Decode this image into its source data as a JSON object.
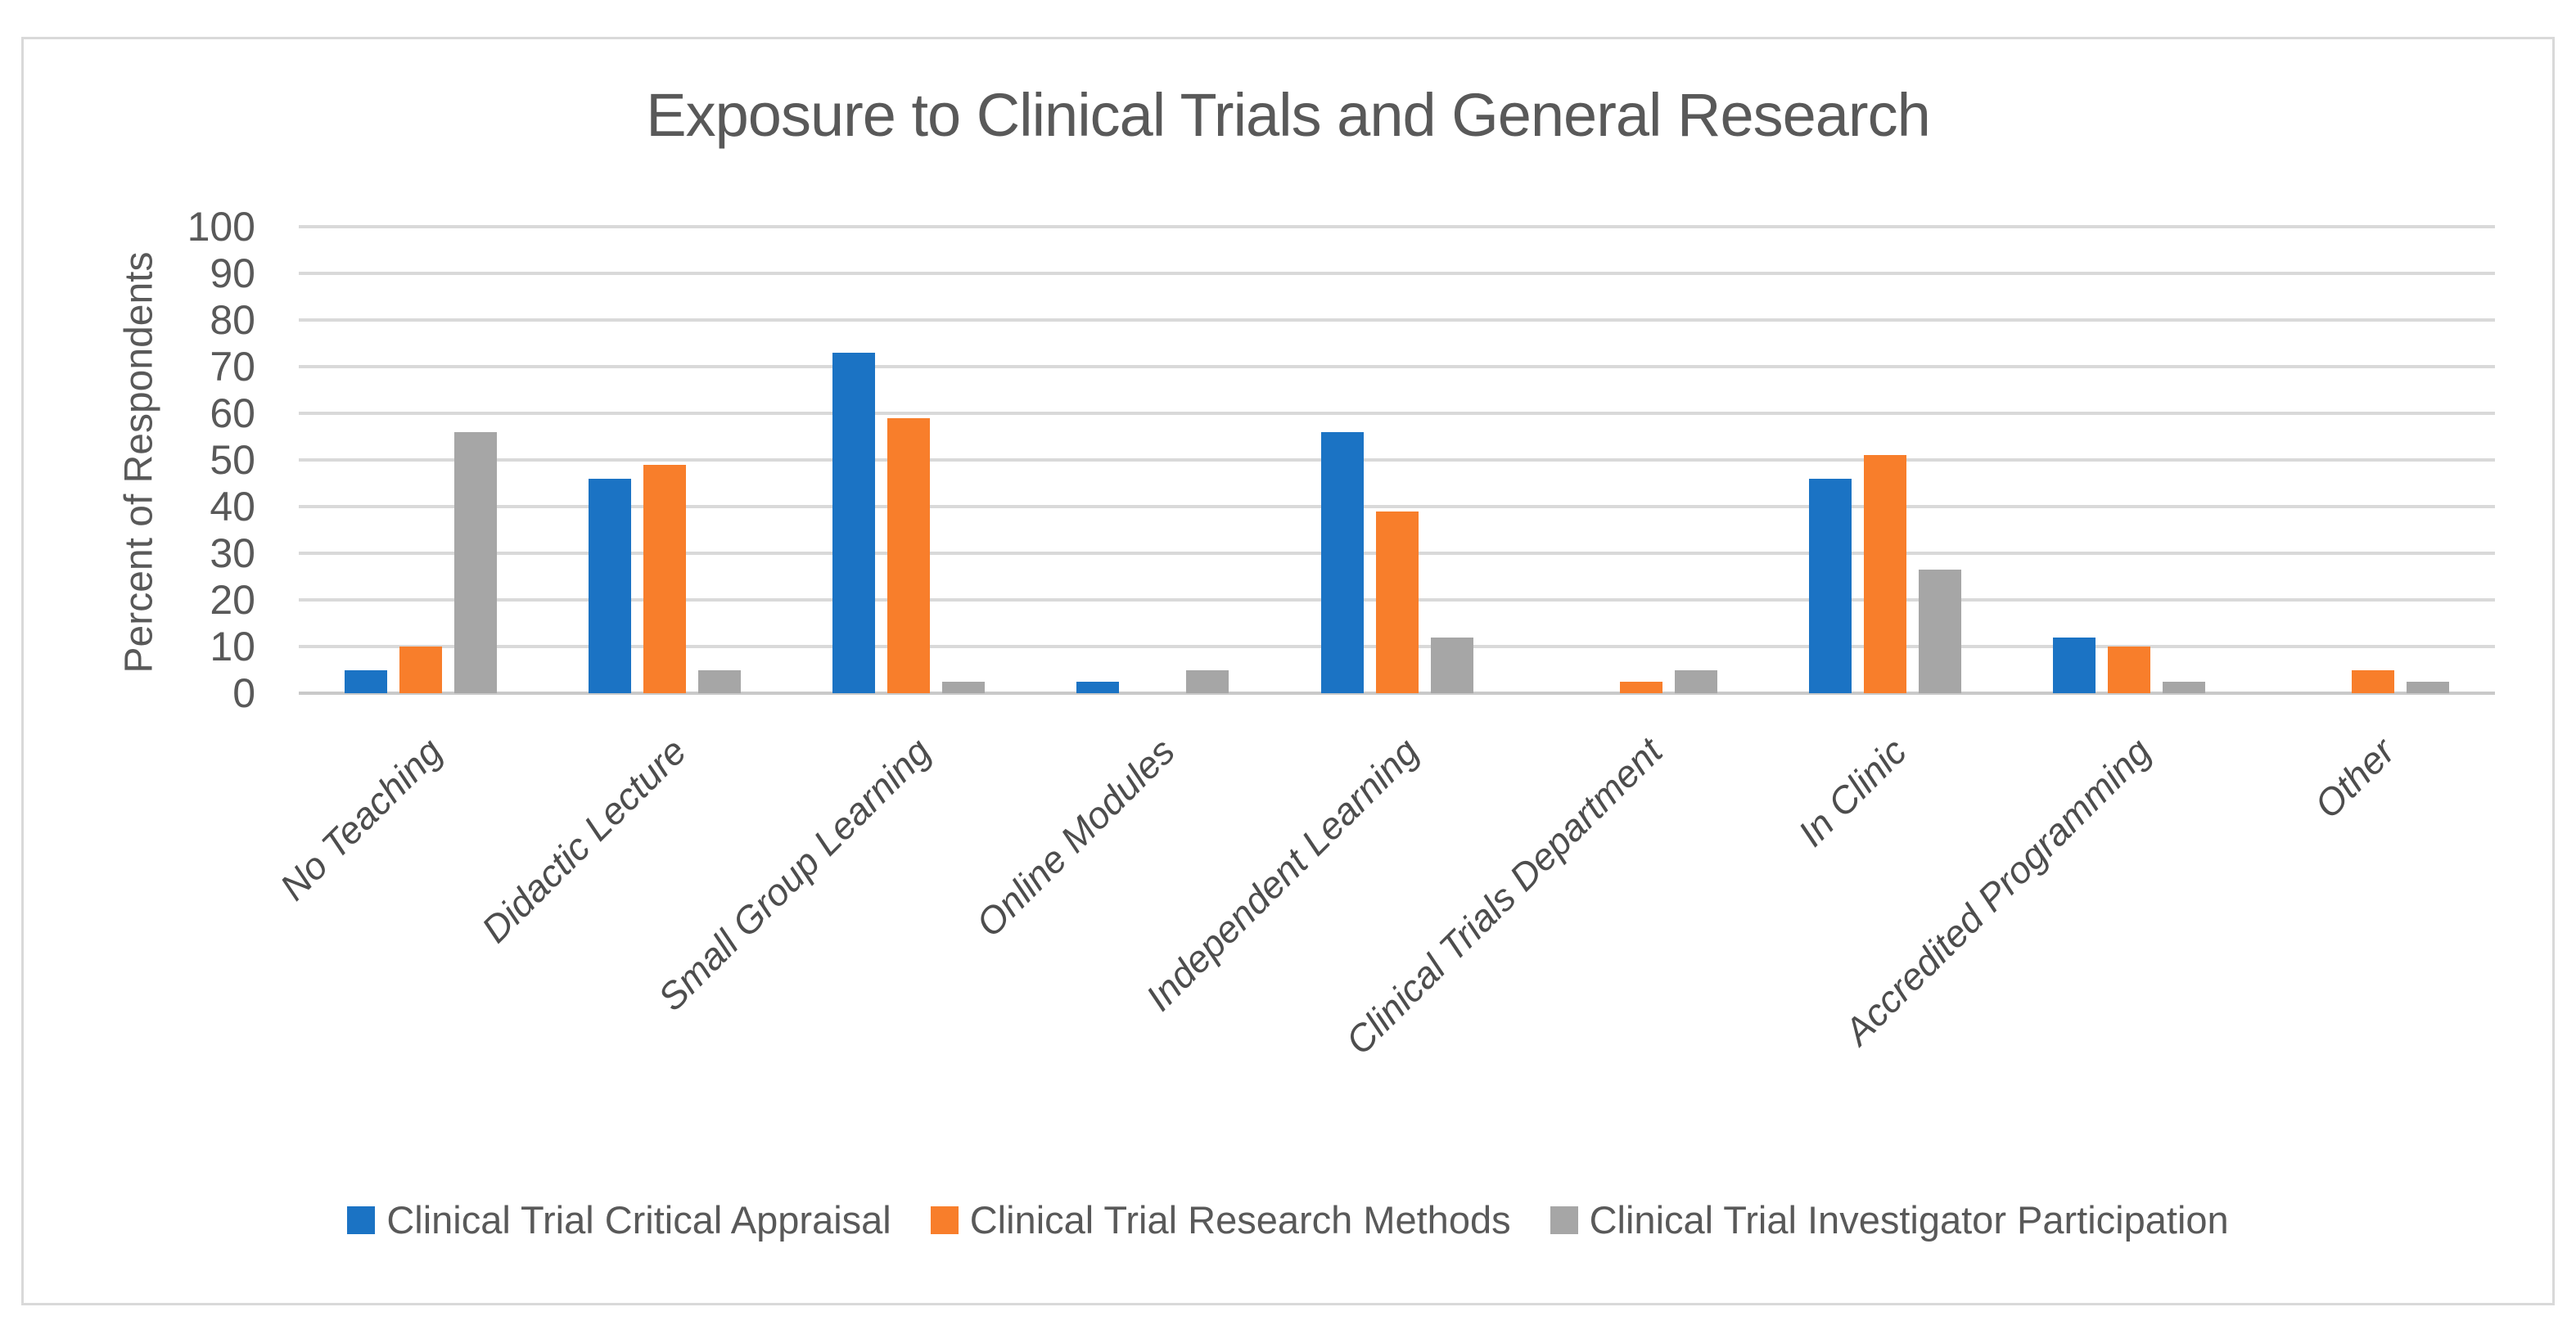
{
  "chart_data": {
    "type": "bar",
    "title": "Exposure to Clinical Trials and General Research",
    "ylabel": "Percent of Respondents",
    "xlabel": "",
    "ylim": [
      0,
      100
    ],
    "yticks": [
      0,
      10,
      20,
      30,
      40,
      50,
      60,
      70,
      80,
      90,
      100
    ],
    "grid": true,
    "legend_position": "bottom",
    "categories": [
      "No Teaching",
      "Didactic Lecture",
      "Small Group Learning",
      "Online Modules",
      "Independent Learning",
      "Clinical Trials Department",
      "In Clinic",
      "Accredited Programming",
      "Other"
    ],
    "series": [
      {
        "name": "Clinical Trial Critical Appraisal",
        "color": "#1b73c4",
        "values": [
          5,
          46,
          73,
          2.5,
          56,
          0,
          46,
          12,
          0
        ]
      },
      {
        "name": "Clinical Trial Research Methods",
        "color": "#f87e2b",
        "values": [
          10,
          49,
          59,
          0,
          39,
          2.5,
          51,
          10,
          5
        ]
      },
      {
        "name": "Clinical Trial Investigator Participation",
        "color": "#a6a6a6",
        "values": [
          56,
          5,
          2.5,
          5,
          12,
          5,
          26.5,
          2.5,
          2.5
        ]
      }
    ]
  },
  "colors": {
    "gridline": "#d9d9d9",
    "axis_line": "#c9c9c9",
    "text": "#595959",
    "frame_border": "#d9d9d9",
    "background": "#ffffff"
  }
}
